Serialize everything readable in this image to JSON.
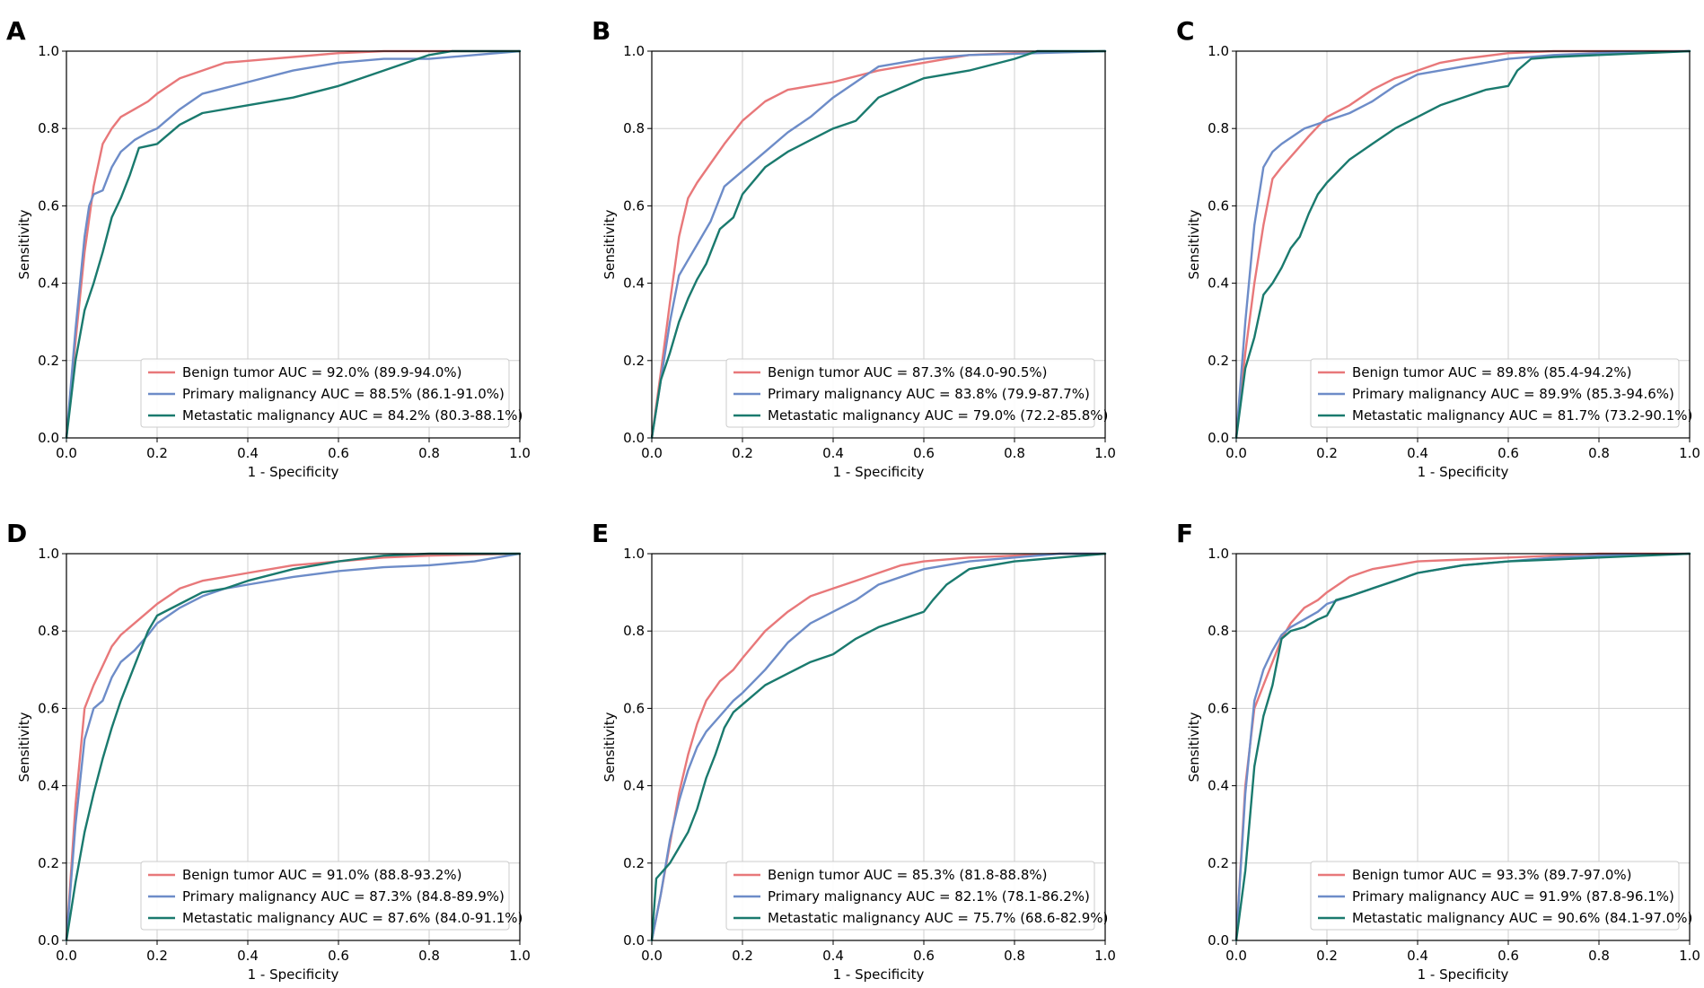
{
  "chart_data": [
    {
      "type": "line",
      "panel_label": "A",
      "xlabel": "1 - Specificity",
      "ylabel": "Sensitivity",
      "xlim": [
        0,
        1
      ],
      "ylim": [
        0,
        1
      ],
      "xticks": [
        "0.0",
        "0.2",
        "0.4",
        "0.6",
        "0.8",
        "1.0"
      ],
      "yticks": [
        "0.0",
        "0.2",
        "0.4",
        "0.6",
        "0.8",
        "1.0"
      ],
      "grid": true,
      "legend_position": "lower-right",
      "series": [
        {
          "name": "Benign tumor AUC = 92.0% (89.9-94.0%)",
          "color": "#E8787A",
          "x": [
            0,
            0.02,
            0.04,
            0.06,
            0.08,
            0.1,
            0.12,
            0.15,
            0.18,
            0.2,
            0.25,
            0.3,
            0.35,
            0.4,
            0.5,
            0.6,
            0.7,
            0.8,
            1.0
          ],
          "y": [
            0,
            0.25,
            0.48,
            0.65,
            0.76,
            0.8,
            0.83,
            0.85,
            0.87,
            0.89,
            0.93,
            0.95,
            0.97,
            0.975,
            0.985,
            0.995,
            1.0,
            1.0,
            1.0
          ]
        },
        {
          "name": "Primary malignancy AUC = 88.5% (86.1-91.0%)",
          "color": "#6D8CC8",
          "x": [
            0,
            0.02,
            0.04,
            0.05,
            0.06,
            0.08,
            0.1,
            0.12,
            0.15,
            0.18,
            0.2,
            0.22,
            0.25,
            0.3,
            0.4,
            0.5,
            0.6,
            0.7,
            0.8,
            0.9,
            1.0
          ],
          "y": [
            0,
            0.28,
            0.52,
            0.6,
            0.63,
            0.64,
            0.7,
            0.74,
            0.77,
            0.79,
            0.8,
            0.82,
            0.85,
            0.89,
            0.92,
            0.95,
            0.97,
            0.98,
            0.98,
            0.99,
            1.0
          ]
        },
        {
          "name": "Metastatic malignancy AUC = 84.2% (80.3-88.1%)",
          "color": "#1A7A6E",
          "x": [
            0,
            0.02,
            0.04,
            0.06,
            0.08,
            0.1,
            0.12,
            0.14,
            0.16,
            0.2,
            0.22,
            0.25,
            0.3,
            0.4,
            0.5,
            0.6,
            0.65,
            0.7,
            0.8,
            0.85,
            1.0
          ],
          "y": [
            0,
            0.2,
            0.33,
            0.4,
            0.48,
            0.57,
            0.62,
            0.68,
            0.75,
            0.76,
            0.78,
            0.81,
            0.84,
            0.86,
            0.88,
            0.91,
            0.93,
            0.95,
            0.99,
            1.0,
            1.0
          ]
        }
      ]
    },
    {
      "type": "line",
      "panel_label": "B",
      "xlabel": "1 - Specificity",
      "ylabel": "Sensitivity",
      "xlim": [
        0,
        1
      ],
      "ylim": [
        0,
        1
      ],
      "xticks": [
        "0.0",
        "0.2",
        "0.4",
        "0.6",
        "0.8",
        "1.0"
      ],
      "yticks": [
        "0.0",
        "0.2",
        "0.4",
        "0.6",
        "0.8",
        "1.0"
      ],
      "grid": true,
      "legend_position": "lower-right",
      "series": [
        {
          "name": "Benign tumor AUC = 87.3% (84.0-90.5%)",
          "color": "#E8787A",
          "x": [
            0,
            0.02,
            0.04,
            0.06,
            0.08,
            0.1,
            0.13,
            0.16,
            0.2,
            0.25,
            0.3,
            0.4,
            0.5,
            0.6,
            0.7,
            0.8,
            1.0
          ],
          "y": [
            0,
            0.17,
            0.35,
            0.52,
            0.62,
            0.66,
            0.71,
            0.76,
            0.82,
            0.87,
            0.9,
            0.92,
            0.95,
            0.97,
            0.99,
            0.995,
            1.0
          ]
        },
        {
          "name": "Primary malignancy AUC = 83.8% (79.9-87.7%)",
          "color": "#6D8CC8",
          "x": [
            0,
            0.02,
            0.04,
            0.06,
            0.08,
            0.1,
            0.13,
            0.16,
            0.2,
            0.25,
            0.3,
            0.35,
            0.4,
            0.45,
            0.5,
            0.6,
            0.7,
            0.85,
            1.0
          ],
          "y": [
            0,
            0.15,
            0.3,
            0.42,
            0.46,
            0.5,
            0.56,
            0.65,
            0.69,
            0.74,
            0.79,
            0.83,
            0.88,
            0.92,
            0.96,
            0.98,
            0.99,
            0.995,
            1.0
          ]
        },
        {
          "name": "Metastatic malignancy AUC = 79.0% (72.2-85.8%)",
          "color": "#1A7A6E",
          "x": [
            0,
            0.02,
            0.04,
            0.06,
            0.08,
            0.1,
            0.12,
            0.15,
            0.18,
            0.2,
            0.25,
            0.3,
            0.35,
            0.4,
            0.45,
            0.5,
            0.6,
            0.7,
            0.8,
            0.85,
            1.0
          ],
          "y": [
            0,
            0.15,
            0.22,
            0.3,
            0.36,
            0.41,
            0.45,
            0.54,
            0.57,
            0.63,
            0.7,
            0.74,
            0.77,
            0.8,
            0.82,
            0.88,
            0.93,
            0.95,
            0.98,
            1.0,
            1.0
          ]
        }
      ]
    },
    {
      "type": "line",
      "panel_label": "C",
      "xlabel": "1 - Specificity",
      "ylabel": "Sensitivity",
      "xlim": [
        0,
        1
      ],
      "ylim": [
        0,
        1
      ],
      "xticks": [
        "0.0",
        "0.2",
        "0.4",
        "0.6",
        "0.8",
        "1.0"
      ],
      "yticks": [
        "0.0",
        "0.2",
        "0.4",
        "0.6",
        "0.8",
        "1.0"
      ],
      "grid": true,
      "legend_position": "lower-right",
      "series": [
        {
          "name": "Benign tumor AUC = 89.8% (85.4-94.2%)",
          "color": "#E8787A",
          "x": [
            0,
            0.02,
            0.04,
            0.06,
            0.08,
            0.1,
            0.13,
            0.16,
            0.2,
            0.25,
            0.3,
            0.35,
            0.4,
            0.45,
            0.5,
            0.6,
            0.7,
            1.0
          ],
          "y": [
            0,
            0.22,
            0.4,
            0.55,
            0.67,
            0.7,
            0.74,
            0.78,
            0.83,
            0.86,
            0.9,
            0.93,
            0.95,
            0.97,
            0.98,
            0.995,
            1.0,
            1.0
          ]
        },
        {
          "name": "Primary malignancy AUC = 89.9% (85.3-94.6%)",
          "color": "#6D8CC8",
          "x": [
            0,
            0.02,
            0.04,
            0.06,
            0.08,
            0.1,
            0.15,
            0.2,
            0.25,
            0.3,
            0.35,
            0.4,
            0.5,
            0.6,
            0.7,
            0.8,
            1.0
          ],
          "y": [
            0,
            0.3,
            0.55,
            0.7,
            0.74,
            0.76,
            0.8,
            0.82,
            0.84,
            0.87,
            0.91,
            0.94,
            0.96,
            0.98,
            0.99,
            0.995,
            1.0
          ]
        },
        {
          "name": "Metastatic malignancy AUC = 81.7% (73.2-90.1%)",
          "color": "#1A7A6E",
          "x": [
            0,
            0.02,
            0.04,
            0.06,
            0.08,
            0.1,
            0.12,
            0.14,
            0.16,
            0.18,
            0.2,
            0.25,
            0.3,
            0.35,
            0.4,
            0.45,
            0.5,
            0.55,
            0.6,
            0.62,
            0.65,
            0.7,
            0.8,
            1.0
          ],
          "y": [
            0,
            0.18,
            0.26,
            0.37,
            0.4,
            0.44,
            0.49,
            0.52,
            0.58,
            0.63,
            0.66,
            0.72,
            0.76,
            0.8,
            0.83,
            0.86,
            0.88,
            0.9,
            0.91,
            0.95,
            0.98,
            0.985,
            0.99,
            1.0
          ]
        }
      ]
    },
    {
      "type": "line",
      "panel_label": "D",
      "xlabel": "1 - Specificity",
      "ylabel": "Sensitivity",
      "xlim": [
        0,
        1
      ],
      "ylim": [
        0,
        1
      ],
      "xticks": [
        "0.0",
        "0.2",
        "0.4",
        "0.6",
        "0.8",
        "1.0"
      ],
      "yticks": [
        "0.0",
        "0.2",
        "0.4",
        "0.6",
        "0.8",
        "1.0"
      ],
      "grid": true,
      "legend_position": "lower-right",
      "series": [
        {
          "name": "Benign tumor AUC = 91.0% (88.8-93.2%)",
          "color": "#E8787A",
          "x": [
            0,
            0.02,
            0.04,
            0.06,
            0.08,
            0.1,
            0.12,
            0.15,
            0.18,
            0.2,
            0.25,
            0.3,
            0.35,
            0.4,
            0.5,
            0.6,
            0.7,
            0.8,
            1.0
          ],
          "y": [
            0,
            0.35,
            0.6,
            0.66,
            0.71,
            0.76,
            0.79,
            0.82,
            0.85,
            0.87,
            0.91,
            0.93,
            0.94,
            0.95,
            0.97,
            0.98,
            0.99,
            0.995,
            1.0
          ]
        },
        {
          "name": "Primary malignancy AUC = 87.3% (84.8-89.9%)",
          "color": "#6D8CC8",
          "x": [
            0,
            0.02,
            0.04,
            0.06,
            0.08,
            0.1,
            0.12,
            0.15,
            0.18,
            0.2,
            0.25,
            0.3,
            0.35,
            0.4,
            0.5,
            0.6,
            0.7,
            0.8,
            0.9,
            1.0
          ],
          "y": [
            0,
            0.3,
            0.52,
            0.6,
            0.62,
            0.68,
            0.72,
            0.75,
            0.79,
            0.82,
            0.86,
            0.89,
            0.91,
            0.92,
            0.94,
            0.955,
            0.965,
            0.97,
            0.98,
            1.0
          ]
        },
        {
          "name": "Metastatic malignancy AUC = 87.6% (84.0-91.1%)",
          "color": "#1A7A6E",
          "x": [
            0,
            0.02,
            0.04,
            0.06,
            0.08,
            0.1,
            0.12,
            0.14,
            0.16,
            0.18,
            0.2,
            0.25,
            0.3,
            0.35,
            0.4,
            0.5,
            0.6,
            0.7,
            0.8,
            1.0
          ],
          "y": [
            0,
            0.15,
            0.28,
            0.38,
            0.47,
            0.55,
            0.62,
            0.68,
            0.74,
            0.8,
            0.84,
            0.87,
            0.9,
            0.91,
            0.93,
            0.96,
            0.98,
            0.995,
            1.0,
            1.0
          ]
        }
      ]
    },
    {
      "type": "line",
      "panel_label": "E",
      "xlabel": "1 - Specificity",
      "ylabel": "Sensitivity",
      "xlim": [
        0,
        1
      ],
      "ylim": [
        0,
        1
      ],
      "xticks": [
        "0.0",
        "0.2",
        "0.4",
        "0.6",
        "0.8",
        "1.0"
      ],
      "yticks": [
        "0.0",
        "0.2",
        "0.4",
        "0.6",
        "0.8",
        "1.0"
      ],
      "grid": true,
      "legend_position": "lower-right",
      "series": [
        {
          "name": "Benign tumor AUC = 85.3% (81.8-88.8%)",
          "color": "#E8787A",
          "x": [
            0,
            0.02,
            0.04,
            0.06,
            0.08,
            0.1,
            0.12,
            0.15,
            0.18,
            0.2,
            0.25,
            0.3,
            0.35,
            0.4,
            0.45,
            0.5,
            0.55,
            0.6,
            0.7,
            0.8,
            0.9,
            1.0
          ],
          "y": [
            0,
            0.12,
            0.25,
            0.38,
            0.48,
            0.56,
            0.62,
            0.67,
            0.7,
            0.73,
            0.8,
            0.85,
            0.89,
            0.91,
            0.93,
            0.95,
            0.97,
            0.98,
            0.99,
            0.995,
            1.0,
            1.0
          ]
        },
        {
          "name": "Primary malignancy AUC = 82.1% (78.1-86.2%)",
          "color": "#6D8CC8",
          "x": [
            0,
            0.02,
            0.04,
            0.06,
            0.08,
            0.1,
            0.12,
            0.15,
            0.18,
            0.2,
            0.25,
            0.3,
            0.35,
            0.4,
            0.45,
            0.5,
            0.6,
            0.7,
            0.8,
            0.9,
            1.0
          ],
          "y": [
            0,
            0.12,
            0.26,
            0.36,
            0.44,
            0.5,
            0.54,
            0.58,
            0.62,
            0.64,
            0.7,
            0.77,
            0.82,
            0.85,
            0.88,
            0.92,
            0.96,
            0.98,
            0.99,
            1.0,
            1.0
          ]
        },
        {
          "name": "Metastatic malignancy AUC = 75.7% (68.6-82.9%)",
          "color": "#1A7A6E",
          "x": [
            0,
            0.01,
            0.04,
            0.06,
            0.08,
            0.1,
            0.12,
            0.14,
            0.16,
            0.18,
            0.2,
            0.25,
            0.3,
            0.35,
            0.4,
            0.45,
            0.5,
            0.55,
            0.6,
            0.62,
            0.65,
            0.7,
            0.8,
            0.9,
            1.0
          ],
          "y": [
            0,
            0.16,
            0.2,
            0.24,
            0.28,
            0.34,
            0.42,
            0.48,
            0.55,
            0.59,
            0.61,
            0.66,
            0.69,
            0.72,
            0.74,
            0.78,
            0.81,
            0.83,
            0.85,
            0.88,
            0.92,
            0.96,
            0.98,
            0.99,
            1.0
          ]
        }
      ]
    },
    {
      "type": "line",
      "panel_label": "F",
      "xlabel": "1 - Specificity",
      "ylabel": "Sensitivity",
      "xlim": [
        0,
        1
      ],
      "ylim": [
        0,
        1
      ],
      "xticks": [
        "0.0",
        "0.2",
        "0.4",
        "0.6",
        "0.8",
        "1.0"
      ],
      "yticks": [
        "0.0",
        "0.2",
        "0.4",
        "0.6",
        "0.8",
        "1.0"
      ],
      "grid": true,
      "legend_position": "lower-right",
      "series": [
        {
          "name": "Benign tumor AUC = 93.3% (89.7-97.0%)",
          "color": "#E8787A",
          "x": [
            0,
            0.02,
            0.04,
            0.06,
            0.08,
            0.1,
            0.12,
            0.15,
            0.18,
            0.2,
            0.25,
            0.3,
            0.35,
            0.4,
            0.5,
            0.6,
            0.7,
            0.8,
            1.0
          ],
          "y": [
            0,
            0.4,
            0.6,
            0.66,
            0.72,
            0.78,
            0.82,
            0.86,
            0.88,
            0.9,
            0.94,
            0.96,
            0.97,
            0.98,
            0.985,
            0.99,
            0.995,
            1.0,
            1.0
          ]
        },
        {
          "name": "Primary malignancy AUC = 91.9% (87.8-96.1%)",
          "color": "#6D8CC8",
          "x": [
            0,
            0.02,
            0.04,
            0.06,
            0.08,
            0.1,
            0.12,
            0.15,
            0.18,
            0.2,
            0.25,
            0.3,
            0.35,
            0.4,
            0.5,
            0.6,
            0.7,
            0.8,
            1.0
          ],
          "y": [
            0,
            0.38,
            0.62,
            0.7,
            0.75,
            0.79,
            0.81,
            0.83,
            0.85,
            0.87,
            0.89,
            0.91,
            0.93,
            0.95,
            0.97,
            0.98,
            0.99,
            0.995,
            1.0
          ]
        },
        {
          "name": "Metastatic malignancy AUC = 90.6% (84.1-97.0%)",
          "color": "#1A7A6E",
          "x": [
            0,
            0.02,
            0.04,
            0.06,
            0.08,
            0.1,
            0.12,
            0.15,
            0.18,
            0.2,
            0.22,
            0.25,
            0.3,
            0.35,
            0.4,
            0.5,
            0.6,
            0.7,
            0.8,
            1.0
          ],
          "y": [
            0,
            0.18,
            0.45,
            0.58,
            0.66,
            0.78,
            0.8,
            0.81,
            0.83,
            0.84,
            0.88,
            0.89,
            0.91,
            0.93,
            0.95,
            0.97,
            0.98,
            0.985,
            0.99,
            1.0
          ]
        }
      ]
    }
  ]
}
